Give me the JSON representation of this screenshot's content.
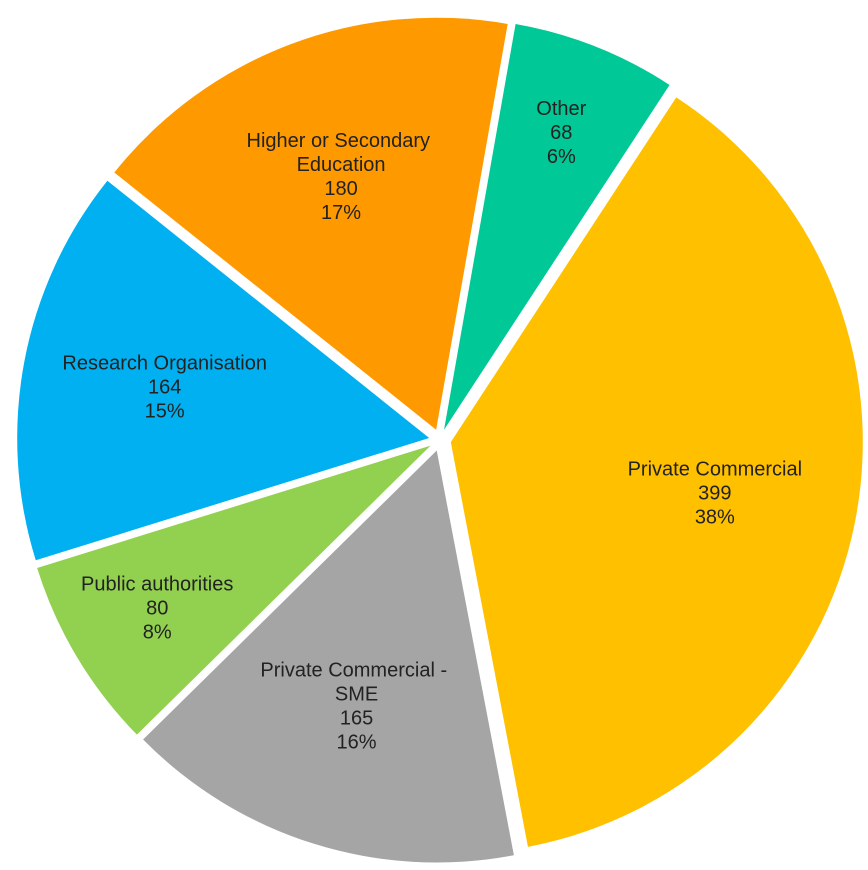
{
  "chart_data": {
    "type": "pie",
    "categories": [
      "Other",
      "Private Commercial",
      "Private Commercial - SME",
      "Public authorities",
      "Research Organisation",
      "Higher or Secondary Education"
    ],
    "values": [
      68,
      399,
      165,
      80,
      164,
      180
    ],
    "percent_labels": [
      "6%",
      "38%",
      "16%",
      "8%",
      "15%",
      "17%"
    ],
    "colors": [
      "#00c896",
      "#ffc000",
      "#a5a5a5",
      "#92d050",
      "#00b0f0",
      "#ff9900"
    ]
  }
}
